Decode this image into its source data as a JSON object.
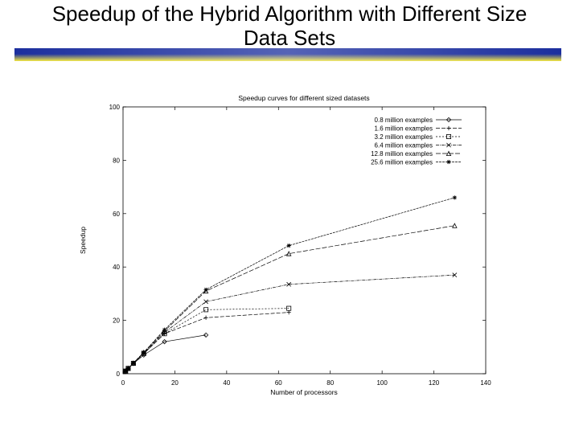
{
  "slide": {
    "title_line1": "Speedup of the Hybrid Algorithm with Different Size",
    "title_line2": "Data Sets",
    "rule_color_dark": "#1c2f9e",
    "rule_color_light": "#f2e640"
  },
  "chart_data": {
    "type": "line",
    "title": "Speedup curves for different sized datasets",
    "xlabel": "Number of processors",
    "ylabel": "Speedup",
    "xlim": [
      0,
      140
    ],
    "ylim": [
      0,
      100
    ],
    "xticks": [
      0,
      20,
      40,
      60,
      80,
      100,
      120,
      140
    ],
    "yticks": [
      0,
      20,
      40,
      60,
      80,
      100
    ],
    "legend_position": "top-right",
    "grid": false,
    "series": [
      {
        "name": "0.8 million examples",
        "marker": "diamond",
        "dash": "none",
        "x": [
          1,
          2,
          4,
          8,
          16,
          32
        ],
        "y": [
          1,
          2,
          3.8,
          7,
          12,
          14.5
        ]
      },
      {
        "name": "1.6 million examples",
        "marker": "plus",
        "dash": "5,2",
        "x": [
          1,
          2,
          4,
          8,
          16,
          32,
          64
        ],
        "y": [
          1,
          2,
          3.9,
          7.5,
          15,
          21,
          23
        ]
      },
      {
        "name": "3.2 million examples",
        "marker": "square",
        "dash": "2,2",
        "x": [
          1,
          2,
          4,
          8,
          16,
          32,
          64
        ],
        "y": [
          1,
          2,
          3.9,
          7.6,
          15,
          24,
          24.5
        ]
      },
      {
        "name": "6.4 million examples",
        "marker": "x",
        "dash": "4,1,1,1",
        "x": [
          1,
          2,
          4,
          8,
          16,
          32,
          64,
          128
        ],
        "y": [
          1,
          2,
          3.9,
          7.8,
          15.5,
          27,
          33.5,
          37
        ]
      },
      {
        "name": "12.8 million examples",
        "marker": "triangle",
        "dash": "6,2",
        "x": [
          1,
          2,
          4,
          8,
          16,
          32,
          64,
          128
        ],
        "y": [
          1,
          2,
          4,
          8,
          16,
          31,
          45,
          55.5
        ]
      },
      {
        "name": "25.6 million examples",
        "marker": "star",
        "dash": "3,1",
        "x": [
          1,
          2,
          4,
          8,
          16,
          32,
          64,
          128
        ],
        "y": [
          1,
          2,
          4,
          8,
          16.5,
          31.5,
          48,
          66
        ]
      }
    ]
  }
}
